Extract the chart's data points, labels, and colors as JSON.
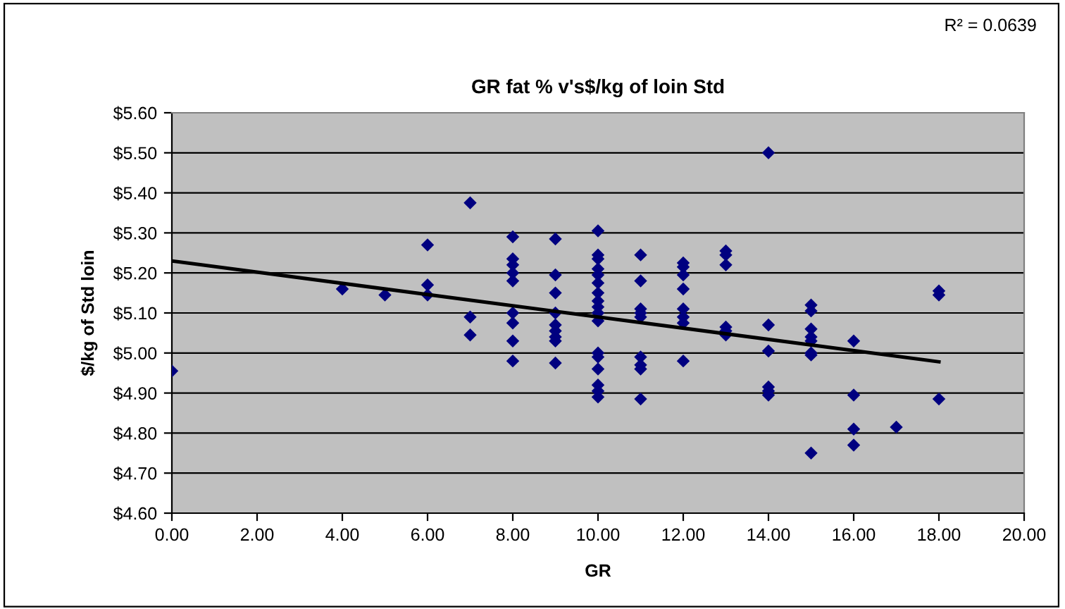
{
  "chart_data": {
    "type": "scatter",
    "title": "GR fat % v's$/kg of loin Std",
    "xlabel": "GR",
    "ylabel": "$/kg of Std loin",
    "annotations": [
      "R² = 0.0639"
    ],
    "xlim": [
      0,
      20
    ],
    "xticks": [
      {
        "value": 0,
        "label": "0.00"
      },
      {
        "value": 2,
        "label": "2.00"
      },
      {
        "value": 4,
        "label": "4.00"
      },
      {
        "value": 6,
        "label": "6.00"
      },
      {
        "value": 8,
        "label": "8.00"
      },
      {
        "value": 10,
        "label": "10.00"
      },
      {
        "value": 12,
        "label": "12.00"
      },
      {
        "value": 14,
        "label": "14.00"
      },
      {
        "value": 16,
        "label": "16.00"
      },
      {
        "value": 18,
        "label": "18.00"
      },
      {
        "value": 20,
        "label": "20.00"
      }
    ],
    "ylim": [
      4.6,
      5.6
    ],
    "yticks": [
      {
        "value": 4.6,
        "label": "$4.60"
      },
      {
        "value": 4.7,
        "label": "$4.70"
      },
      {
        "value": 4.8,
        "label": "$4.80"
      },
      {
        "value": 4.9,
        "label": "$4.90"
      },
      {
        "value": 5.0,
        "label": "$5.00"
      },
      {
        "value": 5.1,
        "label": "$5.10"
      },
      {
        "value": 5.2,
        "label": "$5.20"
      },
      {
        "value": 5.3,
        "label": "$5.30"
      },
      {
        "value": 5.4,
        "label": "$5.40"
      },
      {
        "value": 5.5,
        "label": "$5.50"
      },
      {
        "value": 5.6,
        "label": "$5.60"
      }
    ],
    "grid": "y",
    "legend": false,
    "series": [
      {
        "color": "#000080",
        "marker": "diamond",
        "x": [
          0,
          4,
          5,
          6,
          6,
          6,
          7,
          7,
          7,
          8,
          8,
          8,
          8,
          8,
          8,
          8,
          8,
          8,
          9,
          9,
          9,
          9,
          9,
          9,
          9,
          9,
          9,
          10,
          10,
          10,
          10,
          10,
          10,
          10,
          10,
          10,
          10,
          10,
          10,
          10,
          10,
          10,
          10,
          10,
          11,
          11,
          11,
          11,
          11,
          11,
          11,
          11,
          11,
          12,
          12,
          12,
          12,
          12,
          12,
          12,
          12,
          13,
          13,
          13,
          13,
          13,
          13,
          14,
          14,
          14,
          14,
          14,
          14,
          15,
          15,
          15,
          15,
          15,
          15,
          15,
          15,
          16,
          16,
          16,
          16,
          17,
          18,
          18,
          18
        ],
        "values": [
          4.955,
          5.16,
          5.145,
          5.27,
          5.17,
          5.145,
          5.375,
          5.09,
          5.045,
          5.29,
          5.235,
          5.22,
          5.2,
          5.18,
          5.1,
          5.075,
          5.03,
          4.98,
          5.285,
          5.195,
          5.15,
          5.1,
          5.07,
          5.055,
          5.04,
          5.03,
          4.975,
          5.305,
          5.245,
          5.235,
          5.21,
          5.195,
          5.175,
          5.15,
          5.13,
          5.115,
          5.1,
          5.08,
          5.0,
          4.99,
          4.96,
          4.92,
          4.905,
          4.89,
          5.245,
          5.18,
          5.11,
          5.1,
          5.09,
          4.99,
          4.97,
          4.96,
          4.885,
          5.225,
          5.215,
          5.195,
          5.16,
          5.11,
          5.09,
          5.075,
          4.98,
          5.255,
          5.245,
          5.22,
          5.065,
          5.055,
          5.045,
          5.5,
          5.07,
          5.005,
          4.915,
          4.905,
          4.895,
          5.12,
          5.105,
          5.06,
          5.04,
          5.03,
          5.0,
          4.995,
          4.75,
          5.03,
          4.895,
          4.81,
          4.77,
          4.815,
          5.155,
          5.145,
          4.885
        ]
      },
      {
        "type": "line",
        "color": "#000000",
        "marker": "none",
        "line_style": "solid",
        "x": [
          0,
          18
        ],
        "values": [
          5.23,
          4.978
        ]
      }
    ]
  }
}
